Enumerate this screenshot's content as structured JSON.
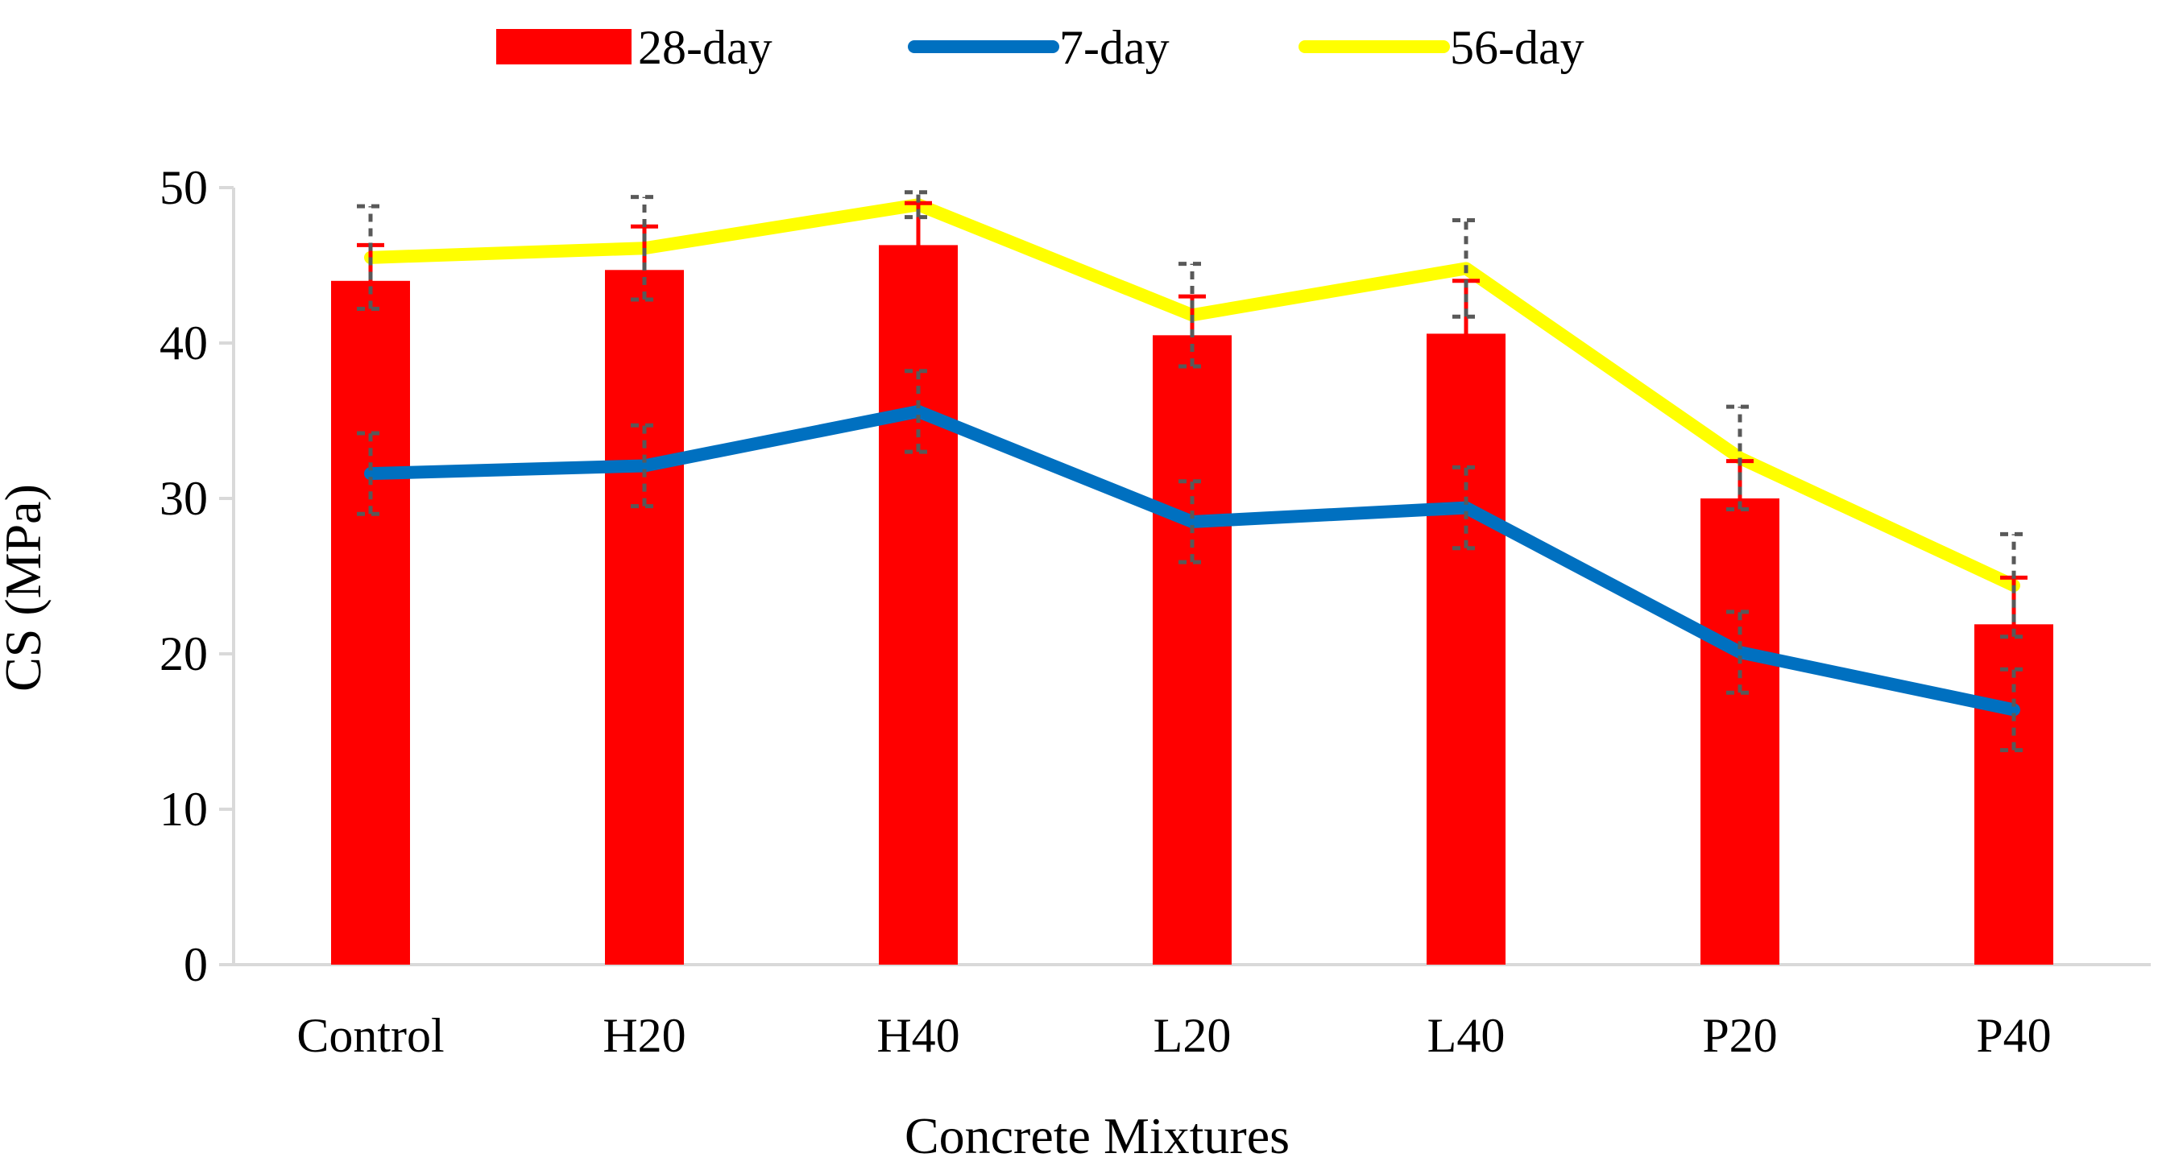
{
  "chart_data": {
    "type": "bar",
    "title": "",
    "xlabel": "Concrete Mixtures",
    "ylabel": "CS (MPa)",
    "ylim": [
      0,
      50
    ],
    "yticks": [
      0,
      10,
      20,
      30,
      40,
      50
    ],
    "grid": false,
    "legend_position": "top",
    "categories": [
      "Control",
      "H20",
      "H40",
      "L20",
      "L40",
      "P20",
      "P40"
    ],
    "series": [
      {
        "name": "28-day",
        "kind": "bar",
        "color": "#ff0000",
        "values": [
          44.0,
          44.7,
          46.3,
          40.5,
          40.6,
          30.0,
          21.9
        ],
        "error": [
          2.3,
          2.8,
          2.7,
          2.5,
          3.4,
          2.4,
          3.0
        ]
      },
      {
        "name": "7-day",
        "kind": "line",
        "color": "#0070c0",
        "values": [
          31.6,
          32.1,
          35.6,
          28.5,
          29.4,
          20.1,
          16.4
        ],
        "error": [
          2.6,
          2.6,
          2.6,
          2.6,
          2.6,
          2.6,
          2.6
        ]
      },
      {
        "name": "56-day",
        "kind": "line",
        "color": "#ffff00",
        "values": [
          45.5,
          46.1,
          48.9,
          41.8,
          44.8,
          32.6,
          24.4
        ],
        "error": [
          3.3,
          3.3,
          0.8,
          3.3,
          3.1,
          3.3,
          3.3
        ]
      }
    ],
    "legend": [
      {
        "name": "28-day",
        "symbol": "bar",
        "color": "#ff0000"
      },
      {
        "name": "7-day",
        "symbol": "line",
        "color": "#0070c0"
      },
      {
        "name": "56-day",
        "symbol": "line",
        "color": "#ffff00"
      }
    ],
    "errorbar_colors": {
      "bar": "#ff0000",
      "line": "#595959"
    }
  }
}
